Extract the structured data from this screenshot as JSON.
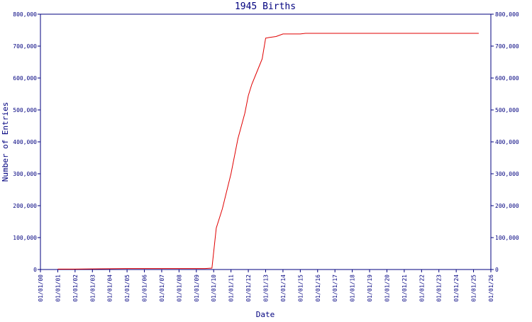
{
  "chart_data": {
    "type": "line",
    "title": "1945 Births",
    "xlabel": "Date",
    "ylabel": "Number of Entries",
    "grid": false,
    "legend": "none",
    "ylim": [
      0,
      800000
    ],
    "y_ticks": [
      0,
      100000,
      200000,
      300000,
      400000,
      500000,
      600000,
      700000,
      800000
    ],
    "y_tick_labels": [
      "0",
      "100,000",
      "200,000",
      "300,000",
      "400,000",
      "500,000",
      "600,000",
      "700,000",
      "800,000"
    ],
    "y_axis_right": true,
    "x_tick_labels": [
      "01/01/00",
      "01/01/01",
      "01/01/02",
      "01/01/03",
      "01/01/04",
      "01/01/05",
      "01/01/06",
      "01/01/07",
      "01/01/08",
      "01/01/09",
      "01/01/10",
      "01/01/11",
      "01/01/12",
      "01/01/13",
      "01/01/14",
      "01/01/15",
      "01/01/16",
      "01/01/17",
      "01/01/18",
      "01/01/19",
      "01/01/20",
      "01/01/21",
      "01/01/22",
      "01/01/23",
      "01/01/24",
      "01/01/25",
      "01/01/26"
    ],
    "series": [
      {
        "color": "#e00000",
        "x": [
          2001.0,
          2002.0,
          2003.0,
          2004.0,
          2005.0,
          2006.0,
          2007.0,
          2008.0,
          2009.0,
          2009.5,
          2009.9,
          2010.15,
          2010.5,
          2011.0,
          2011.4,
          2011.8,
          2012.0,
          2012.2,
          2012.5,
          2012.8,
          2013.0,
          2013.2,
          2013.6,
          2014.0,
          2014.2,
          2014.6,
          2015.0,
          2015.3,
          2016.0,
          2017.0,
          2018.0,
          2019.0,
          2020.0,
          2021.0,
          2022.0,
          2023.0,
          2024.0,
          2025.0,
          2025.3
        ],
        "y": [
          1500,
          1500,
          2000,
          2500,
          3000,
          3000,
          3000,
          3000,
          3000,
          3000,
          4500,
          130000,
          190000,
          300000,
          410000,
          490000,
          545000,
          580000,
          620000,
          660000,
          725000,
          727000,
          730000,
          738000,
          738000,
          738000,
          738000,
          740000,
          740000,
          740000,
          740000,
          740000,
          740000,
          740000,
          740000,
          740000,
          740000,
          740000,
          740000
        ]
      }
    ]
  }
}
